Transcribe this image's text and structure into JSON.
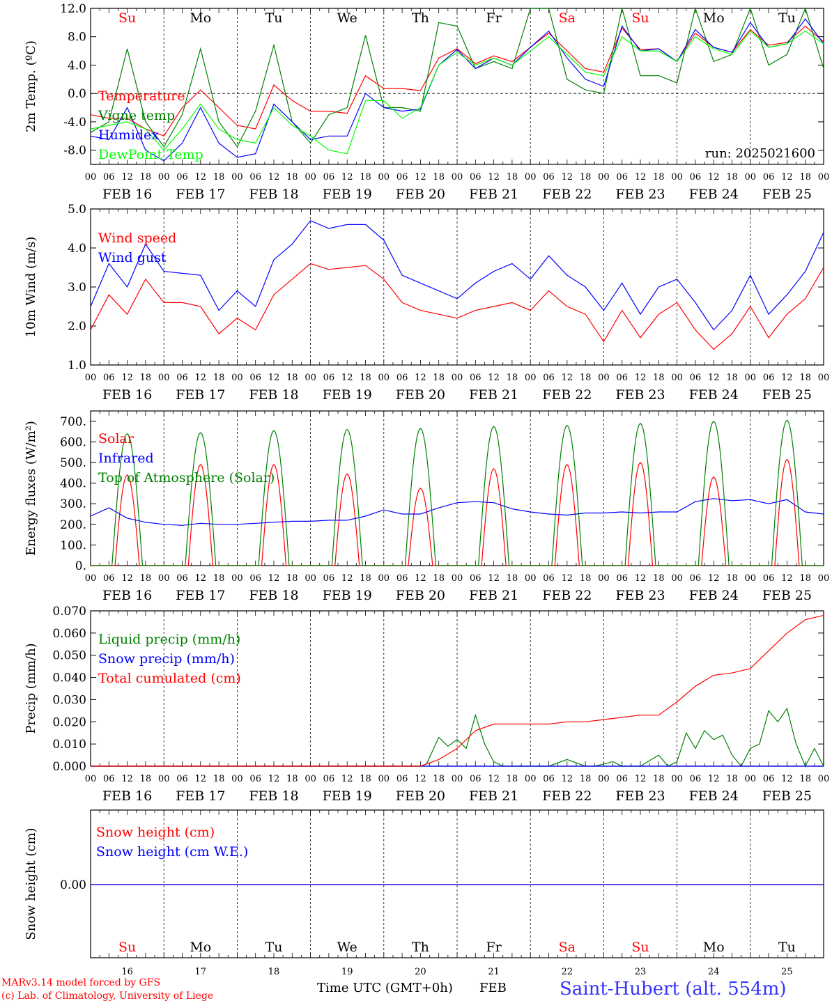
{
  "footer": {
    "model_line": "MARv3.14 model forced by GFS",
    "lab_line": "(c) Lab. of Climatology, University of Liege",
    "time_axis_label": "Time UTC (GMT+0h)",
    "month_label": "FEB",
    "station": "Saint-Hubert (alt. 554m)"
  },
  "colors": {
    "red": "#ff0000",
    "green": "#008000",
    "blue": "#0000ff",
    "lime": "#00ff00",
    "day_red": "#ff0000",
    "day_black": "#000000"
  },
  "days": {
    "weekday_labels": [
      "Su",
      "Mo",
      "Tu",
      "We",
      "Th",
      "Fr",
      "Sa",
      "Su",
      "Mo",
      "Tu"
    ],
    "weekday_colors": [
      "red",
      "black",
      "black",
      "black",
      "black",
      "black",
      "red",
      "red",
      "black",
      "black"
    ],
    "date_labels": [
      "FEB 16",
      "FEB 17",
      "FEB 18",
      "FEB 19",
      "FEB 20",
      "FEB 21",
      "FEB 22",
      "FEB 23",
      "FEB 24",
      "FEB 25"
    ],
    "day_numbers": [
      "16",
      "17",
      "18",
      "19",
      "20",
      "21",
      "22",
      "23",
      "24",
      "25"
    ],
    "hour_labels": [
      "00",
      "06",
      "12",
      "18"
    ],
    "final_hour_label": "00"
  },
  "chart_data": [
    {
      "id": "temp",
      "type": "line",
      "ylabel": "2m Temp. (ºC)",
      "ylim": [
        -10,
        12
      ],
      "yticks": [
        12,
        8,
        4,
        0,
        -4,
        -8
      ],
      "ytick_labels": [
        "12.0",
        "8.0",
        "4.0",
        "0.0",
        "-4.0",
        "-8.0"
      ],
      "zero_line": true,
      "run_label": "run: 2025021600",
      "xlim_hours": [
        0,
        240
      ],
      "series": [
        {
          "name": "Temperature",
          "color": "red",
          "x": [
            0,
            6,
            12,
            18,
            24,
            30,
            36,
            42,
            48,
            54,
            60,
            66,
            72,
            78,
            84,
            90,
            96,
            102,
            108,
            114,
            120,
            126,
            132,
            138,
            144,
            150,
            156,
            162,
            168,
            174,
            180,
            186,
            192,
            198,
            204,
            210,
            216,
            222,
            228,
            234,
            240
          ],
          "y": [
            -3,
            -3.5,
            -3.5,
            -5,
            -6,
            -2,
            0.5,
            -2,
            -4.5,
            -5,
            1.2,
            -1,
            -2.5,
            -2.5,
            -2.8,
            2.5,
            0.7,
            0.7,
            0.4,
            5,
            6.3,
            4.2,
            5.3,
            4.5,
            6.5,
            8.5,
            6,
            3.5,
            3,
            9.2,
            6.2,
            6.3,
            4.5,
            8.5,
            6.5,
            5.8,
            9,
            6.8,
            7.2,
            9.5,
            7.3
          ]
        },
        {
          "name": "Vigne temp",
          "color": "green",
          "x": [
            0,
            6,
            12,
            18,
            24,
            30,
            36,
            42,
            48,
            54,
            60,
            66,
            72,
            78,
            84,
            90,
            96,
            102,
            108,
            114,
            120,
            126,
            132,
            138,
            144,
            150,
            156,
            162,
            168,
            174,
            180,
            186,
            192,
            198,
            204,
            210,
            216,
            222,
            228,
            234,
            240
          ],
          "y": [
            -5.5,
            -4,
            6.3,
            -4,
            -7.5,
            -3,
            6.3,
            -4,
            -7.5,
            -2.5,
            6.8,
            -4,
            -7,
            -3,
            -2,
            8.2,
            -2,
            -2,
            -2.5,
            10,
            9.5,
            3.5,
            4.5,
            3.5,
            12,
            12,
            2,
            0.5,
            0,
            12,
            2.5,
            2.5,
            1.5,
            12,
            4.5,
            5.5,
            12,
            4,
            5.5,
            12,
            3.5
          ]
        },
        {
          "name": "Humidex",
          "color": "blue",
          "x": [
            0,
            6,
            12,
            18,
            24,
            30,
            36,
            42,
            48,
            54,
            60,
            66,
            72,
            78,
            84,
            90,
            96,
            102,
            108,
            114,
            120,
            126,
            132,
            138,
            144,
            150,
            156,
            162,
            168,
            174,
            180,
            186,
            192,
            198,
            204,
            210,
            216,
            222,
            228,
            234,
            240
          ],
          "y": [
            -6,
            -6.5,
            -2,
            -8,
            -9.5,
            -7,
            -2,
            -7,
            -9,
            -8.5,
            -1.5,
            -4,
            -6.5,
            -6,
            -6,
            0,
            -2,
            -2.5,
            -2.2,
            4,
            6.2,
            3.5,
            5,
            4,
            6.5,
            8.8,
            5,
            2,
            1,
            9.5,
            6,
            6.3,
            4.5,
            9,
            6.5,
            5.8,
            10,
            6.5,
            7,
            10.5,
            7
          ]
        },
        {
          "name": "DewPoint Temp",
          "color": "lime",
          "x": [
            0,
            6,
            12,
            18,
            24,
            30,
            36,
            42,
            48,
            54,
            60,
            66,
            72,
            78,
            84,
            90,
            96,
            102,
            108,
            114,
            120,
            126,
            132,
            138,
            144,
            150,
            156,
            162,
            168,
            174,
            180,
            186,
            192,
            198,
            204,
            210,
            216,
            222,
            228,
            234,
            240
          ],
          "y": [
            -5,
            -4.5,
            -4,
            -5,
            -8,
            -5,
            -1.5,
            -5,
            -6.5,
            -7,
            -2,
            -4.5,
            -6,
            -8,
            -8.5,
            -1,
            -1,
            -3.5,
            -2,
            4,
            5.8,
            4,
            5,
            4,
            6,
            8,
            5.5,
            3,
            2.5,
            8,
            6,
            6,
            4.5,
            8,
            6.3,
            5.5,
            8.8,
            6.5,
            7,
            8.8,
            7
          ]
        }
      ]
    },
    {
      "id": "wind",
      "type": "line",
      "ylabel": "10m Wind (m/s)",
      "ylim": [
        1,
        5
      ],
      "yticks": [
        5,
        4,
        3,
        2,
        1
      ],
      "ytick_labels": [
        "5.0",
        "4.0",
        "3.0",
        "2.0",
        "1.0"
      ],
      "xlim_hours": [
        0,
        240
      ],
      "series": [
        {
          "name": "Wind speed",
          "color": "red",
          "x": [
            0,
            6,
            12,
            18,
            24,
            30,
            36,
            42,
            48,
            54,
            60,
            66,
            72,
            78,
            84,
            90,
            96,
            102,
            108,
            114,
            120,
            126,
            132,
            138,
            144,
            150,
            156,
            162,
            168,
            174,
            180,
            186,
            192,
            198,
            204,
            210,
            216,
            222,
            228,
            234,
            240
          ],
          "y": [
            1.9,
            2.8,
            2.3,
            3.2,
            2.6,
            2.6,
            2.5,
            1.8,
            2.2,
            1.9,
            2.8,
            3.2,
            3.6,
            3.45,
            3.5,
            3.55,
            3.2,
            2.6,
            2.4,
            2.3,
            2.2,
            2.4,
            2.5,
            2.6,
            2.4,
            2.9,
            2.5,
            2.3,
            1.6,
            2.4,
            1.7,
            2.3,
            2.6,
            1.9,
            1.4,
            1.8,
            2.5,
            1.7,
            2.3,
            2.7,
            3.5
          ]
        },
        {
          "name": "Wind gust",
          "color": "blue",
          "x": [
            0,
            6,
            12,
            18,
            24,
            30,
            36,
            42,
            48,
            54,
            60,
            66,
            72,
            78,
            84,
            90,
            96,
            102,
            108,
            114,
            120,
            126,
            132,
            138,
            144,
            150,
            156,
            162,
            168,
            174,
            180,
            186,
            192,
            198,
            204,
            210,
            216,
            222,
            228,
            234,
            240
          ],
          "y": [
            2.5,
            3.6,
            3,
            4.1,
            3.4,
            3.35,
            3.3,
            2.4,
            2.9,
            2.5,
            3.7,
            4.1,
            4.7,
            4.5,
            4.6,
            4.6,
            4.2,
            3.3,
            3.1,
            2.9,
            2.7,
            3.1,
            3.4,
            3.6,
            3.2,
            3.8,
            3.3,
            3,
            2.4,
            3.1,
            2.3,
            3,
            3.2,
            2.6,
            1.9,
            2.4,
            3.3,
            2.3,
            2.8,
            3.4,
            4.4
          ]
        }
      ]
    },
    {
      "id": "energy",
      "type": "line",
      "ylabel": "Energy fluxes (W/m²)",
      "ylim": [
        0,
        750
      ],
      "yticks": [
        700,
        600,
        500,
        400,
        300,
        200,
        100,
        0
      ],
      "ytick_labels": [
        "700.",
        "600.",
        "500.",
        "400.",
        "300.",
        "200.",
        "100.",
        "0."
      ],
      "xlim_hours": [
        0,
        240
      ],
      "series": [
        {
          "name": "Solar",
          "color": "red",
          "peaks": [
            440,
            490,
            490,
            445,
            375,
            470,
            490,
            500,
            430,
            515
          ]
        },
        {
          "name": "Infrared",
          "color": "blue",
          "x": [
            0,
            6,
            12,
            18,
            24,
            30,
            36,
            42,
            48,
            54,
            60,
            66,
            72,
            78,
            84,
            90,
            96,
            102,
            108,
            114,
            120,
            126,
            132,
            138,
            144,
            150,
            156,
            162,
            168,
            174,
            180,
            186,
            192,
            198,
            204,
            210,
            216,
            222,
            228,
            234,
            240
          ],
          "y": [
            240,
            280,
            230,
            210,
            200,
            195,
            205,
            200,
            200,
            205,
            210,
            215,
            215,
            220,
            220,
            240,
            270,
            250,
            250,
            280,
            305,
            310,
            305,
            275,
            260,
            250,
            245,
            255,
            255,
            260,
            255,
            260,
            260,
            310,
            325,
            315,
            320,
            300,
            320,
            260,
            250
          ]
        },
        {
          "name": "Top of Atmosphere (Solar)",
          "color": "green",
          "peaks": [
            640,
            645,
            655,
            660,
            665,
            675,
            680,
            690,
            700,
            705
          ]
        }
      ]
    },
    {
      "id": "precip",
      "type": "line",
      "ylabel": "Precip (mm/h)",
      "ylim": [
        0,
        0.07
      ],
      "yticks": [
        0.07,
        0.06,
        0.05,
        0.04,
        0.03,
        0.02,
        0.01,
        0
      ],
      "ytick_labels": [
        "0.070",
        "0.060",
        "0.050",
        "0.040",
        "0.030",
        "0.020",
        "0.010",
        "0.000"
      ],
      "xlim_hours": [
        0,
        240
      ],
      "series": [
        {
          "name": "Liquid precip (mm/h)",
          "color": "green",
          "x": [
            0,
            108,
            110,
            114,
            117,
            120,
            123,
            126,
            129,
            132,
            135,
            138,
            141,
            144,
            150,
            156,
            162,
            165,
            168,
            171,
            174,
            180,
            186,
            189,
            192,
            195,
            198,
            201,
            204,
            207,
            210,
            213,
            216,
            219,
            222,
            225,
            228,
            231,
            234,
            237,
            240
          ],
          "y": [
            0,
            0,
            0.001,
            0.013,
            0.009,
            0.012,
            0.008,
            0.023,
            0.01,
            0.002,
            0,
            0,
            0,
            0,
            0,
            0.003,
            0,
            0,
            0.001,
            0.002,
            0,
            0,
            0.005,
            0,
            0.002,
            0.015,
            0.008,
            0.016,
            0.012,
            0.014,
            0.005,
            0,
            0.008,
            0.01,
            0.025,
            0.02,
            0.026,
            0.01,
            0,
            0.008,
            0
          ]
        },
        {
          "name": "Snow precip (mm/h)",
          "color": "blue",
          "x": [
            0,
            240
          ],
          "y": [
            0,
            0
          ]
        },
        {
          "name": "Total cumulated (cm)",
          "color": "red",
          "x": [
            0,
            108,
            114,
            120,
            126,
            132,
            138,
            144,
            150,
            156,
            162,
            168,
            174,
            180,
            186,
            192,
            198,
            204,
            210,
            216,
            222,
            228,
            234,
            240
          ],
          "y": [
            0,
            0,
            0.003,
            0.008,
            0.016,
            0.019,
            0.019,
            0.019,
            0.019,
            0.02,
            0.02,
            0.021,
            0.022,
            0.023,
            0.023,
            0.029,
            0.036,
            0.041,
            0.042,
            0.044,
            0.052,
            0.06,
            0.066,
            0.068
          ]
        }
      ]
    },
    {
      "id": "snow",
      "type": "line",
      "ylabel": "Snow height (cm)",
      "ytick_labels": [
        "0.00"
      ],
      "xlim_hours": [
        0,
        240
      ],
      "series": [
        {
          "name": "Snow height (cm)",
          "color": "red",
          "x": [
            0,
            240
          ],
          "y": [
            0,
            0
          ]
        },
        {
          "name": "Snow height (cm W.E.)",
          "color": "blue",
          "x": [
            0,
            240
          ],
          "y": [
            0,
            0
          ]
        }
      ]
    }
  ]
}
